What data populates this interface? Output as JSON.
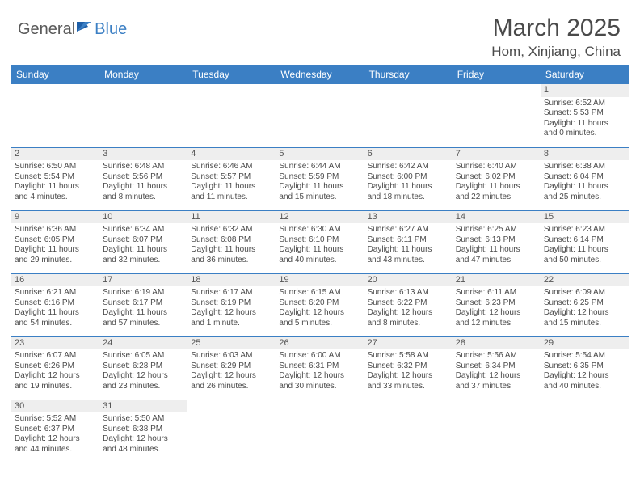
{
  "logo": {
    "general": "General",
    "blue": "Blue"
  },
  "title": "March 2025",
  "location": "Hom, Xinjiang, China",
  "colors": {
    "header_bg": "#3b7fc4",
    "header_text": "#ffffff",
    "border": "#3b7fc4",
    "daynum_bg": "#eeeeee",
    "text": "#4a4a4a"
  },
  "weekdays": [
    "Sunday",
    "Monday",
    "Tuesday",
    "Wednesday",
    "Thursday",
    "Friday",
    "Saturday"
  ],
  "weeks": [
    [
      null,
      null,
      null,
      null,
      null,
      null,
      {
        "d": "1",
        "sr": "Sunrise: 6:52 AM",
        "ss": "Sunset: 5:53 PM",
        "dl1": "Daylight: 11 hours",
        "dl2": "and 0 minutes."
      }
    ],
    [
      {
        "d": "2",
        "sr": "Sunrise: 6:50 AM",
        "ss": "Sunset: 5:54 PM",
        "dl1": "Daylight: 11 hours",
        "dl2": "and 4 minutes."
      },
      {
        "d": "3",
        "sr": "Sunrise: 6:48 AM",
        "ss": "Sunset: 5:56 PM",
        "dl1": "Daylight: 11 hours",
        "dl2": "and 8 minutes."
      },
      {
        "d": "4",
        "sr": "Sunrise: 6:46 AM",
        "ss": "Sunset: 5:57 PM",
        "dl1": "Daylight: 11 hours",
        "dl2": "and 11 minutes."
      },
      {
        "d": "5",
        "sr": "Sunrise: 6:44 AM",
        "ss": "Sunset: 5:59 PM",
        "dl1": "Daylight: 11 hours",
        "dl2": "and 15 minutes."
      },
      {
        "d": "6",
        "sr": "Sunrise: 6:42 AM",
        "ss": "Sunset: 6:00 PM",
        "dl1": "Daylight: 11 hours",
        "dl2": "and 18 minutes."
      },
      {
        "d": "7",
        "sr": "Sunrise: 6:40 AM",
        "ss": "Sunset: 6:02 PM",
        "dl1": "Daylight: 11 hours",
        "dl2": "and 22 minutes."
      },
      {
        "d": "8",
        "sr": "Sunrise: 6:38 AM",
        "ss": "Sunset: 6:04 PM",
        "dl1": "Daylight: 11 hours",
        "dl2": "and 25 minutes."
      }
    ],
    [
      {
        "d": "9",
        "sr": "Sunrise: 6:36 AM",
        "ss": "Sunset: 6:05 PM",
        "dl1": "Daylight: 11 hours",
        "dl2": "and 29 minutes."
      },
      {
        "d": "10",
        "sr": "Sunrise: 6:34 AM",
        "ss": "Sunset: 6:07 PM",
        "dl1": "Daylight: 11 hours",
        "dl2": "and 32 minutes."
      },
      {
        "d": "11",
        "sr": "Sunrise: 6:32 AM",
        "ss": "Sunset: 6:08 PM",
        "dl1": "Daylight: 11 hours",
        "dl2": "and 36 minutes."
      },
      {
        "d": "12",
        "sr": "Sunrise: 6:30 AM",
        "ss": "Sunset: 6:10 PM",
        "dl1": "Daylight: 11 hours",
        "dl2": "and 40 minutes."
      },
      {
        "d": "13",
        "sr": "Sunrise: 6:27 AM",
        "ss": "Sunset: 6:11 PM",
        "dl1": "Daylight: 11 hours",
        "dl2": "and 43 minutes."
      },
      {
        "d": "14",
        "sr": "Sunrise: 6:25 AM",
        "ss": "Sunset: 6:13 PM",
        "dl1": "Daylight: 11 hours",
        "dl2": "and 47 minutes."
      },
      {
        "d": "15",
        "sr": "Sunrise: 6:23 AM",
        "ss": "Sunset: 6:14 PM",
        "dl1": "Daylight: 11 hours",
        "dl2": "and 50 minutes."
      }
    ],
    [
      {
        "d": "16",
        "sr": "Sunrise: 6:21 AM",
        "ss": "Sunset: 6:16 PM",
        "dl1": "Daylight: 11 hours",
        "dl2": "and 54 minutes."
      },
      {
        "d": "17",
        "sr": "Sunrise: 6:19 AM",
        "ss": "Sunset: 6:17 PM",
        "dl1": "Daylight: 11 hours",
        "dl2": "and 57 minutes."
      },
      {
        "d": "18",
        "sr": "Sunrise: 6:17 AM",
        "ss": "Sunset: 6:19 PM",
        "dl1": "Daylight: 12 hours",
        "dl2": "and 1 minute."
      },
      {
        "d": "19",
        "sr": "Sunrise: 6:15 AM",
        "ss": "Sunset: 6:20 PM",
        "dl1": "Daylight: 12 hours",
        "dl2": "and 5 minutes."
      },
      {
        "d": "20",
        "sr": "Sunrise: 6:13 AM",
        "ss": "Sunset: 6:22 PM",
        "dl1": "Daylight: 12 hours",
        "dl2": "and 8 minutes."
      },
      {
        "d": "21",
        "sr": "Sunrise: 6:11 AM",
        "ss": "Sunset: 6:23 PM",
        "dl1": "Daylight: 12 hours",
        "dl2": "and 12 minutes."
      },
      {
        "d": "22",
        "sr": "Sunrise: 6:09 AM",
        "ss": "Sunset: 6:25 PM",
        "dl1": "Daylight: 12 hours",
        "dl2": "and 15 minutes."
      }
    ],
    [
      {
        "d": "23",
        "sr": "Sunrise: 6:07 AM",
        "ss": "Sunset: 6:26 PM",
        "dl1": "Daylight: 12 hours",
        "dl2": "and 19 minutes."
      },
      {
        "d": "24",
        "sr": "Sunrise: 6:05 AM",
        "ss": "Sunset: 6:28 PM",
        "dl1": "Daylight: 12 hours",
        "dl2": "and 23 minutes."
      },
      {
        "d": "25",
        "sr": "Sunrise: 6:03 AM",
        "ss": "Sunset: 6:29 PM",
        "dl1": "Daylight: 12 hours",
        "dl2": "and 26 minutes."
      },
      {
        "d": "26",
        "sr": "Sunrise: 6:00 AM",
        "ss": "Sunset: 6:31 PM",
        "dl1": "Daylight: 12 hours",
        "dl2": "and 30 minutes."
      },
      {
        "d": "27",
        "sr": "Sunrise: 5:58 AM",
        "ss": "Sunset: 6:32 PM",
        "dl1": "Daylight: 12 hours",
        "dl2": "and 33 minutes."
      },
      {
        "d": "28",
        "sr": "Sunrise: 5:56 AM",
        "ss": "Sunset: 6:34 PM",
        "dl1": "Daylight: 12 hours",
        "dl2": "and 37 minutes."
      },
      {
        "d": "29",
        "sr": "Sunrise: 5:54 AM",
        "ss": "Sunset: 6:35 PM",
        "dl1": "Daylight: 12 hours",
        "dl2": "and 40 minutes."
      }
    ],
    [
      {
        "d": "30",
        "sr": "Sunrise: 5:52 AM",
        "ss": "Sunset: 6:37 PM",
        "dl1": "Daylight: 12 hours",
        "dl2": "and 44 minutes."
      },
      {
        "d": "31",
        "sr": "Sunrise: 5:50 AM",
        "ss": "Sunset: 6:38 PM",
        "dl1": "Daylight: 12 hours",
        "dl2": "and 48 minutes."
      },
      null,
      null,
      null,
      null,
      null
    ]
  ]
}
